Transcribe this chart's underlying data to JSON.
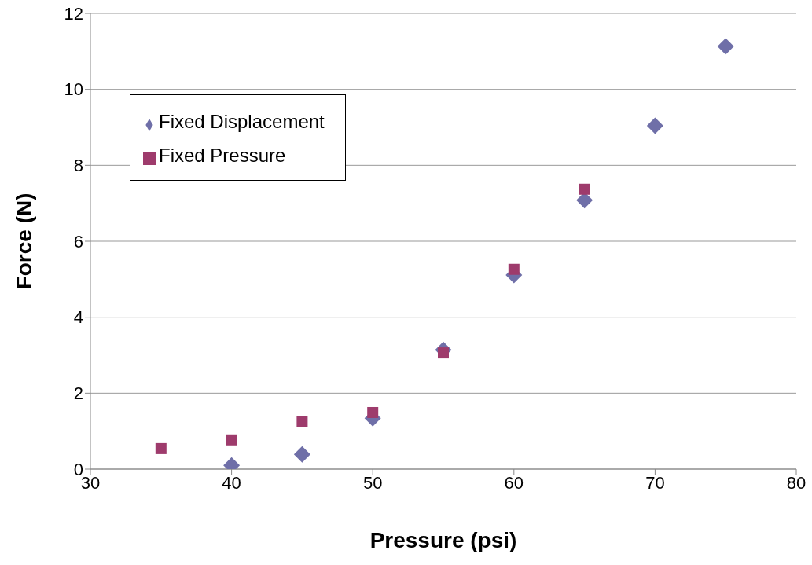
{
  "chart_data": {
    "type": "scatter",
    "xlabel": "Pressure (psi)",
    "ylabel": "Force (N)",
    "xlim": [
      30,
      80
    ],
    "xticks": [
      30,
      40,
      50,
      60,
      70,
      80
    ],
    "ylim": [
      0,
      12
    ],
    "yticks": [
      0,
      2,
      4,
      6,
      8,
      10,
      12
    ],
    "grid": "y",
    "legend": "top left",
    "series": [
      {
        "name": "Fixed Displacement",
        "color": "#6f6fa8",
        "marker": "diamond",
        "x": [
          40,
          45,
          50,
          55,
          60,
          65,
          70,
          75
        ],
        "values": [
          0.1,
          0.39,
          1.34,
          3.14,
          5.11,
          7.08,
          9.04,
          11.13
        ]
      },
      {
        "name": "Fixed Pressure",
        "color": "#9e3b6c",
        "marker": "square",
        "x": [
          35,
          40,
          45,
          50,
          55,
          60,
          65
        ],
        "values": [
          0.54,
          0.77,
          1.26,
          1.49,
          3.06,
          5.26,
          7.37
        ]
      }
    ]
  }
}
